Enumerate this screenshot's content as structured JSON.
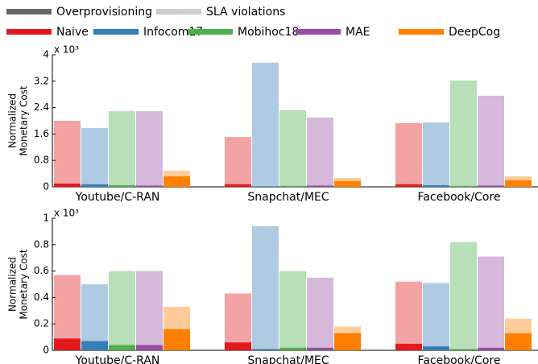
{
  "legend": {
    "components": [
      {
        "name": "Overprovisioning",
        "color": "#666666"
      },
      {
        "name": "SLA violations",
        "color": "#cccccc"
      }
    ],
    "methods": [
      {
        "name": "Naive",
        "color": "#e31a1c"
      },
      {
        "name": "Infocom17",
        "color": "#377eb8"
      },
      {
        "name": "Mobihoc18",
        "color": "#4daf4a"
      },
      {
        "name": "MAE",
        "color": "#984ea3"
      },
      {
        "name": "DeepCog",
        "color": "#ff7f00"
      }
    ]
  },
  "chart_data": [
    {
      "type": "bar",
      "stacked": true,
      "ylabel": [
        "Normalized",
        "Monetary Cost"
      ],
      "multiplier": "x 10³",
      "categories": [
        "Youtube/C-RAN",
        "Snapchat/MEC",
        "Facebook/Core"
      ],
      "ylim": [
        0,
        4
      ],
      "yticks": [
        0,
        0.8,
        1.6,
        2.4,
        3.2,
        4
      ],
      "series": [
        {
          "overprovisioning": [
            0.1,
            0.08,
            0.08
          ],
          "sla_violations": [
            1.9,
            1.43,
            1.85
          ]
        },
        {
          "overprovisioning": [
            0.08,
            0.02,
            0.05
          ],
          "sla_violations": [
            1.7,
            3.74,
            1.9
          ]
        },
        {
          "overprovisioning": [
            0.05,
            0.03,
            0.03
          ],
          "sla_violations": [
            2.24,
            2.29,
            3.19
          ]
        },
        {
          "overprovisioning": [
            0.04,
            0.04,
            0.04
          ],
          "sla_violations": [
            2.25,
            2.06,
            2.72
          ]
        },
        {
          "overprovisioning": [
            0.32,
            0.17,
            0.2
          ],
          "sla_violations": [
            0.17,
            0.1,
            0.12
          ]
        }
      ]
    },
    {
      "type": "bar",
      "stacked": true,
      "ylabel": [
        "Normalized",
        "Monetary Cost"
      ],
      "multiplier": "x 10³",
      "categories": [
        "Youtube/C-RAN",
        "Snapchat/MEC",
        "Facebook/Core"
      ],
      "ylim": [
        0,
        1
      ],
      "yticks": [
        0,
        0.2,
        0.4,
        0.6,
        0.8,
        1
      ],
      "series": [
        {
          "overprovisioning": [
            0.09,
            0.06,
            0.05
          ],
          "sla_violations": [
            0.48,
            0.37,
            0.47
          ]
        },
        {
          "overprovisioning": [
            0.07,
            0.01,
            0.03
          ],
          "sla_violations": [
            0.43,
            0.93,
            0.48
          ]
        },
        {
          "overprovisioning": [
            0.04,
            0.02,
            0.01
          ],
          "sla_violations": [
            0.56,
            0.58,
            0.81
          ]
        },
        {
          "overprovisioning": [
            0.04,
            0.02,
            0.02
          ],
          "sla_violations": [
            0.56,
            0.53,
            0.69
          ]
        },
        {
          "overprovisioning": [
            0.16,
            0.13,
            0.13
          ],
          "sla_violations": [
            0.17,
            0.05,
            0.11
          ]
        }
      ]
    }
  ]
}
